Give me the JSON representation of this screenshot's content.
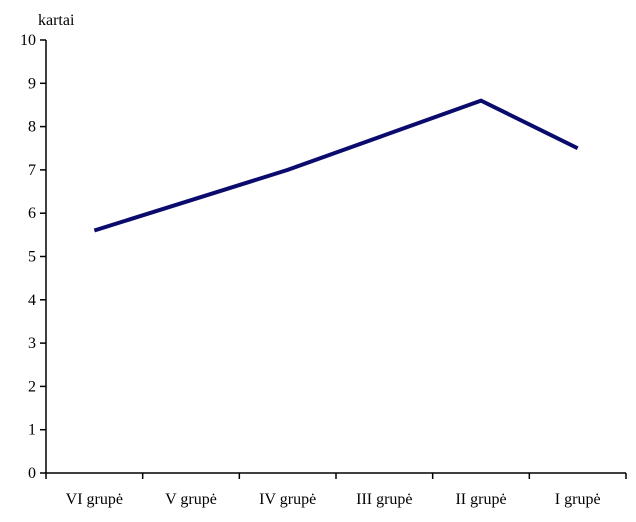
{
  "chart_data": {
    "type": "line",
    "title": "",
    "xlabel": "",
    "ylabel": "kartai",
    "categories": [
      "VI grupė",
      "V grupė",
      "IV grupė",
      "III grupė",
      "II grupė",
      "I grupė"
    ],
    "series": [
      {
        "values": [
          5.6,
          6.3,
          7.0,
          7.8,
          8.6,
          7.5
        ],
        "color": "#0b0b6e"
      }
    ],
    "ylim": [
      0,
      10
    ],
    "yticks": [
      "0",
      "1",
      "2",
      "3",
      "4",
      "5",
      "6",
      "7",
      "8",
      "9",
      "10"
    ],
    "grid": false,
    "legend": "none"
  }
}
